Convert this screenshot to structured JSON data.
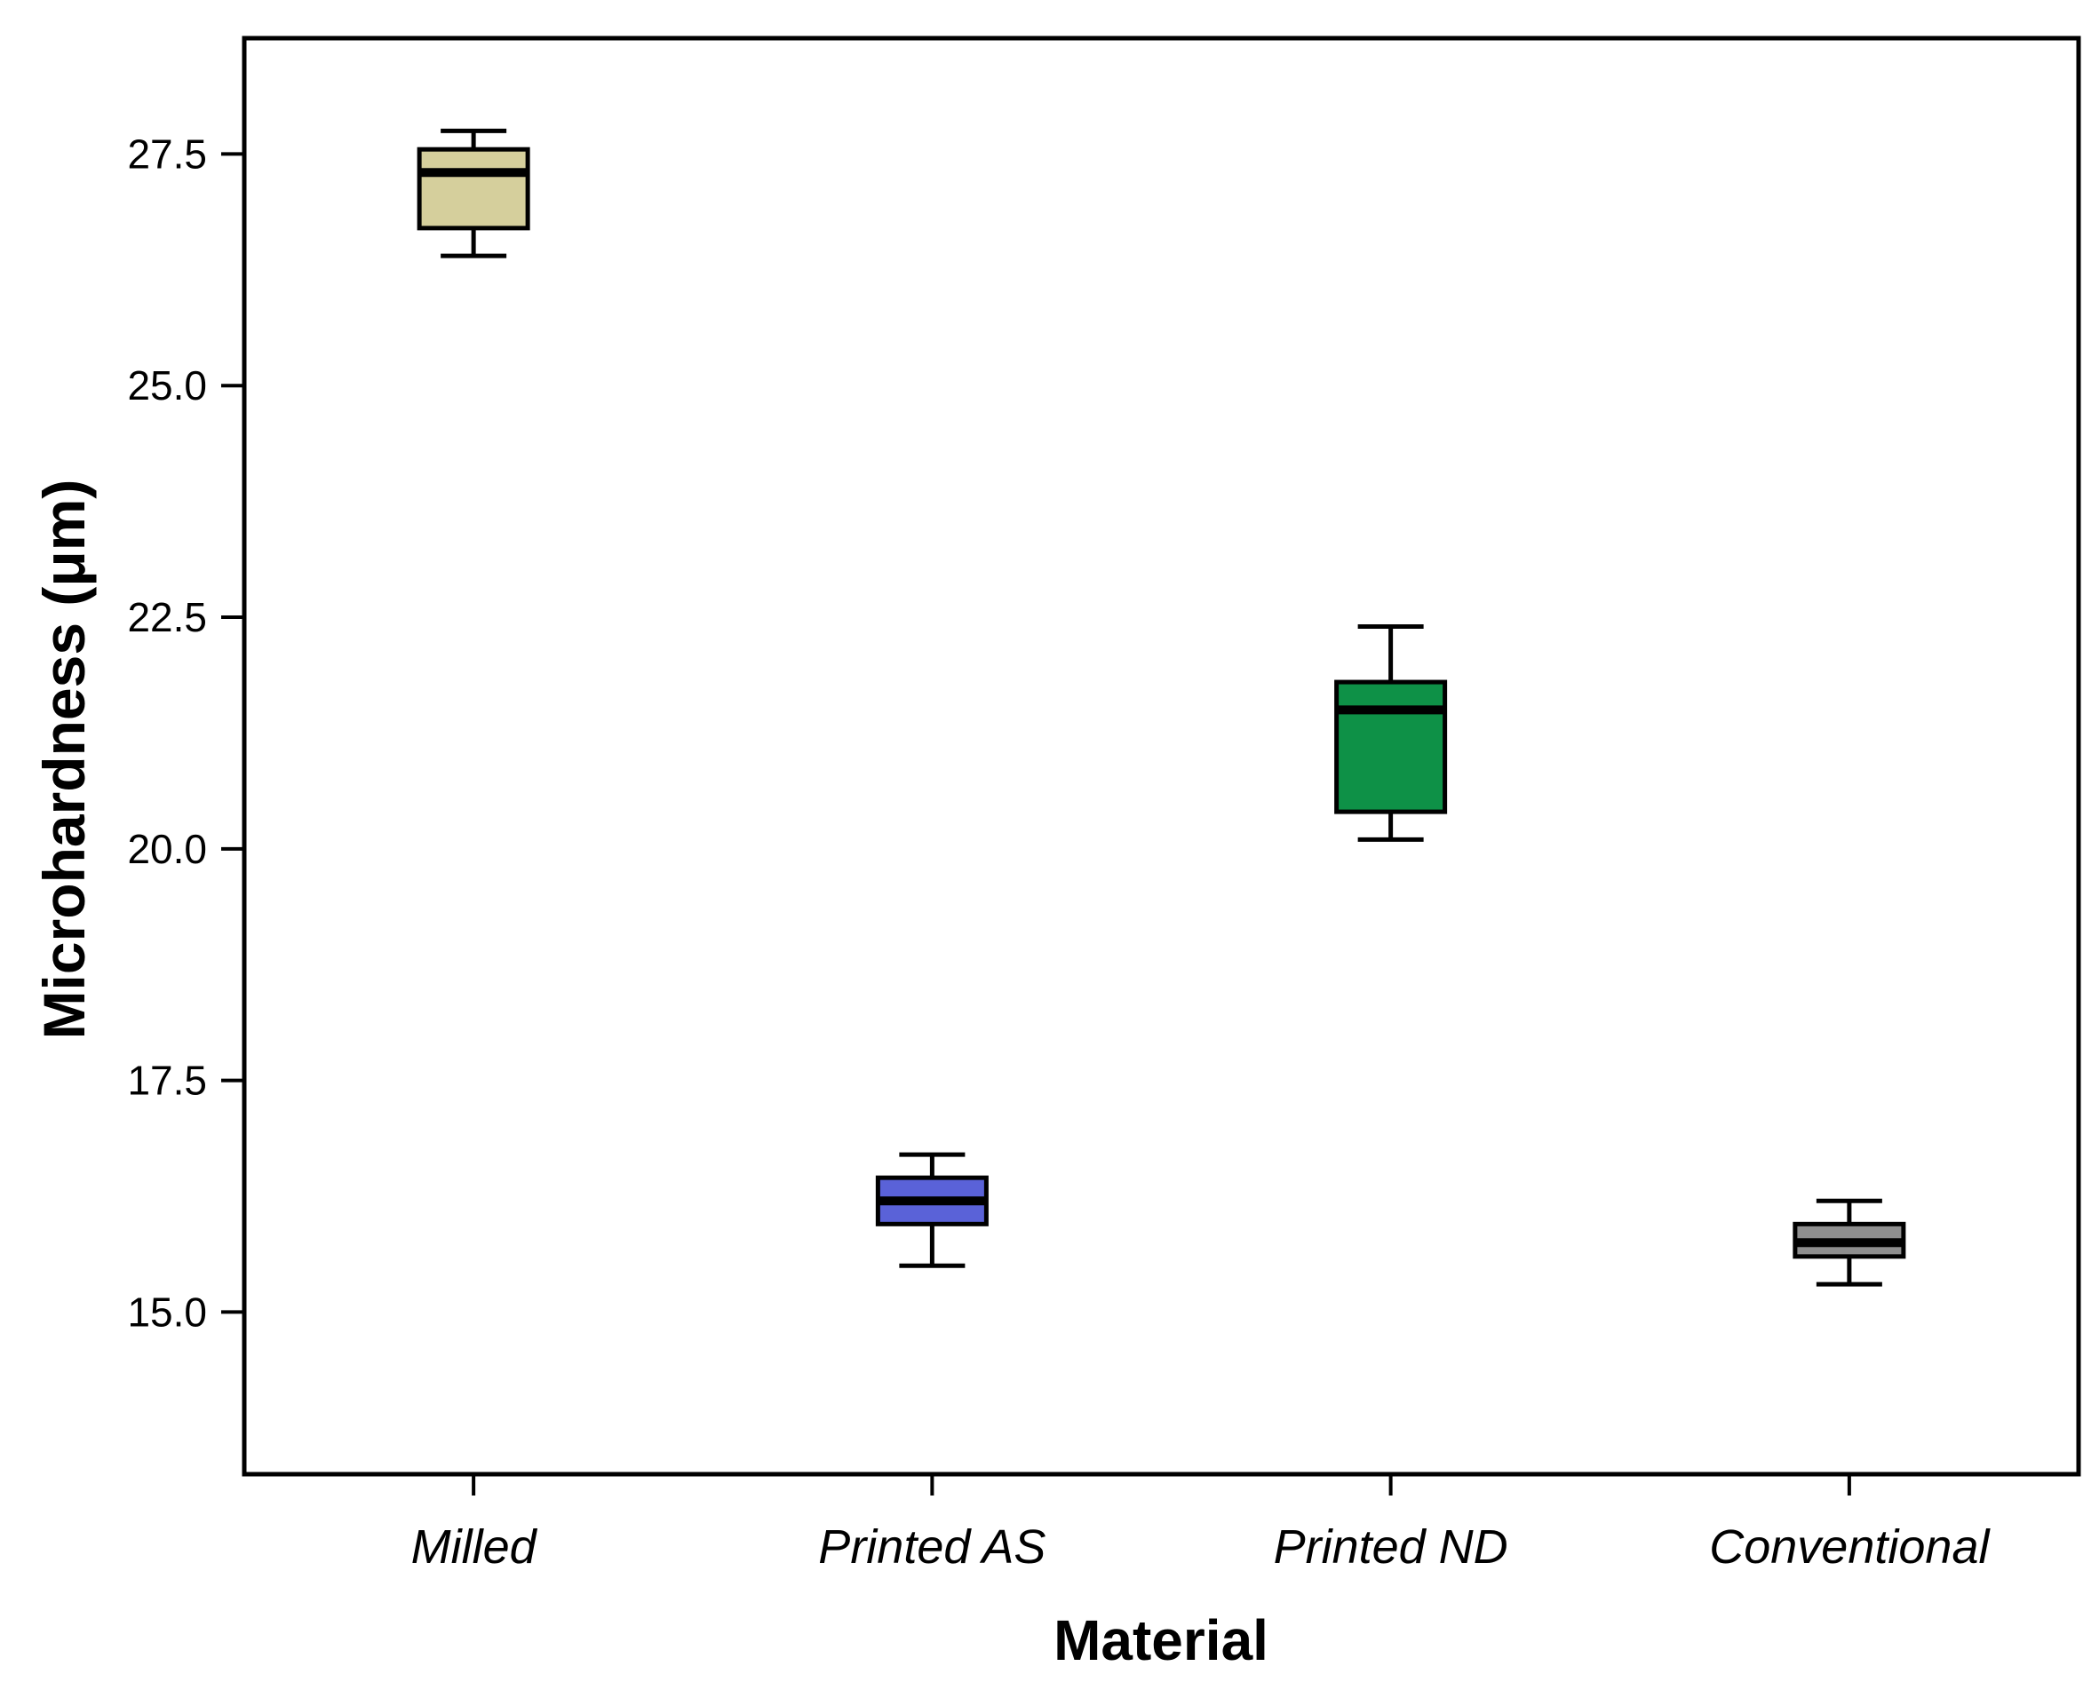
{
  "chart_data": {
    "type": "boxplot",
    "title": "",
    "xlabel": "Material",
    "ylabel": "Microhardness (μm)",
    "categories": [
      "Milled",
      "Printed AS",
      "Printed ND",
      "Conventional"
    ],
    "y_ticks": [
      15.0,
      17.5,
      20.0,
      22.5,
      25.0,
      27.5
    ],
    "y_tick_labels": [
      "15.0",
      "17.5",
      "20.0",
      "22.5",
      "25.0",
      "27.5"
    ],
    "ylim": [
      13.25,
      28.75
    ],
    "grid": false,
    "legend": false,
    "series": [
      {
        "name": "Milled",
        "min": 26.4,
        "q1": 26.7,
        "median": 27.3,
        "q3": 27.55,
        "max": 27.75,
        "color": "#d5cf9c"
      },
      {
        "name": "Printed AS",
        "min": 15.5,
        "q1": 15.95,
        "median": 16.2,
        "q3": 16.45,
        "max": 16.7,
        "color": "#5a62d8"
      },
      {
        "name": "Printed ND",
        "min": 20.1,
        "q1": 20.4,
        "median": 21.5,
        "q3": 21.8,
        "max": 22.4,
        "color": "#0e9147"
      },
      {
        "name": "Conventional",
        "min": 15.3,
        "q1": 15.6,
        "median": 15.75,
        "q3": 15.95,
        "max": 16.2,
        "color": "#8e8e8e"
      }
    ],
    "style": {
      "plot_border_color": "#000000",
      "box_outline_color": "#000000",
      "median_color": "#000000",
      "background": "#ffffff"
    }
  }
}
